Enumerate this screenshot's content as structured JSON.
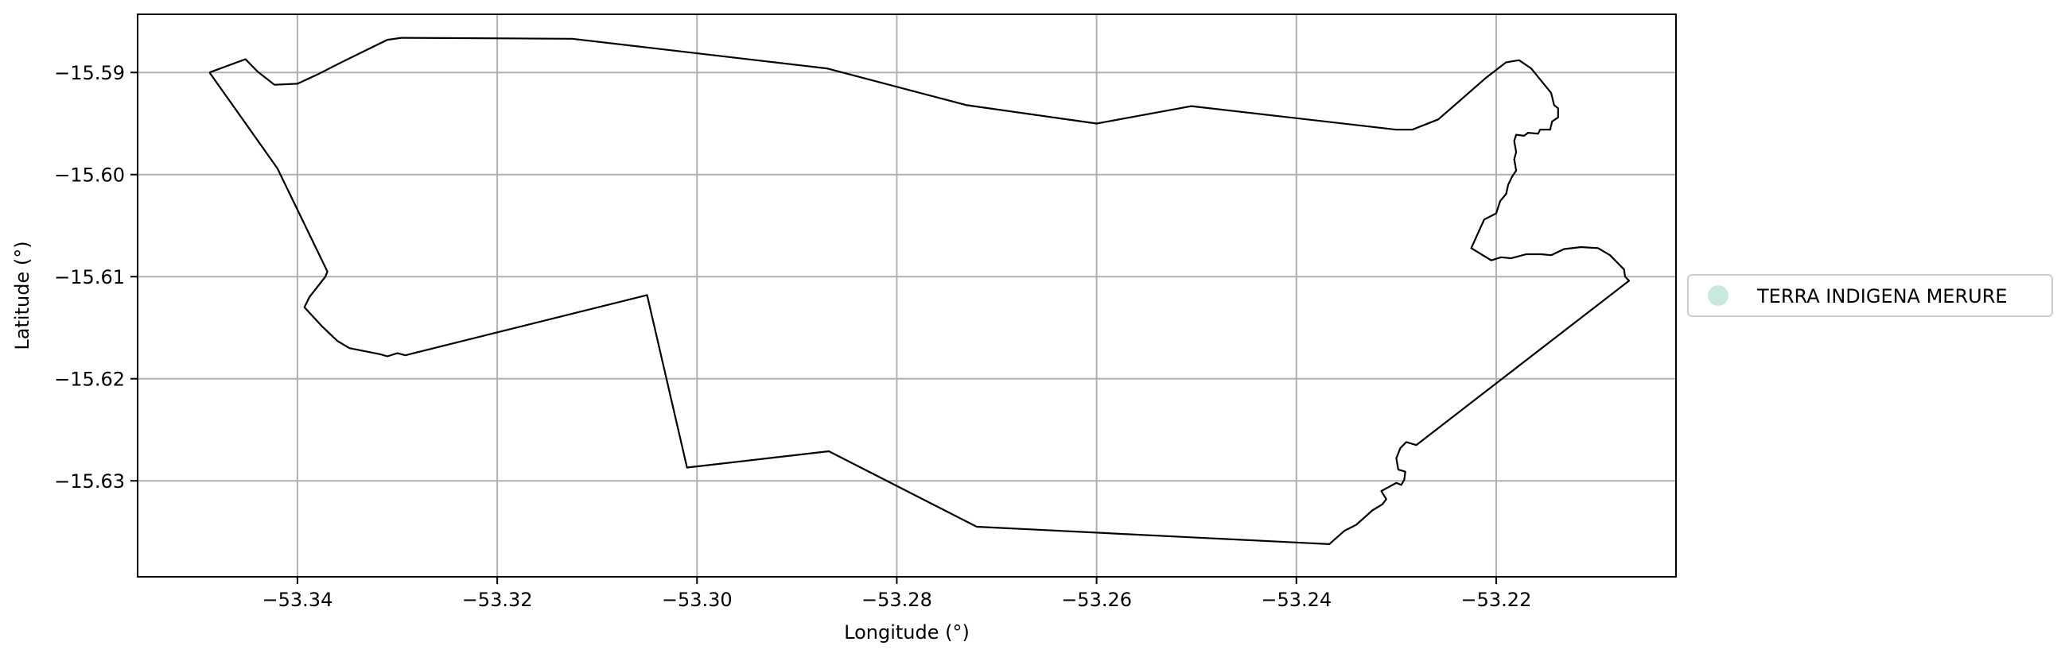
{
  "chart_data": {
    "type": "map",
    "xlabel": "Longitude (°)",
    "ylabel": "Latitude (°)",
    "xlim": [
      -53.356,
      -53.202
    ],
    "ylim": [
      -15.6394,
      -15.5843
    ],
    "x_ticks": [
      -53.34,
      -53.32,
      -53.3,
      -53.28,
      -53.26,
      -53.24,
      -53.22
    ],
    "x_tick_labels": [
      "−53.34",
      "−53.32",
      "−53.30",
      "−53.28",
      "−53.26",
      "−53.24",
      "−53.22"
    ],
    "y_ticks": [
      -15.59,
      -15.6,
      -15.61,
      -15.62,
      -15.63
    ],
    "y_tick_labels": [
      "−15.59",
      "−15.60",
      "−15.61",
      "−15.62",
      "−15.63"
    ],
    "grid": true,
    "legend": {
      "placement": "right-outside",
      "entries": [
        {
          "label": "TERRA INDIGENA MERURE",
          "color": "#c8eadd"
        }
      ]
    },
    "colors": {
      "boundary": "#000000",
      "grid": "#b0b0b0",
      "axes": "#000000"
    },
    "boundary": [
      [
        -53.3488,
        -15.59
      ],
      [
        -53.3452,
        -15.5887
      ],
      [
        -53.344,
        -15.5899
      ],
      [
        -53.3423,
        -15.5912
      ],
      [
        -53.34,
        -15.5911
      ],
      [
        -53.338,
        -15.5902
      ],
      [
        -53.3358,
        -15.5891
      ],
      [
        -53.3331,
        -15.5878
      ],
      [
        -53.331,
        -15.5868
      ],
      [
        -53.3296,
        -15.5866
      ],
      [
        -53.3125,
        -15.5867
      ],
      [
        -53.287,
        -15.5896
      ],
      [
        -53.273,
        -15.5932
      ],
      [
        -53.26,
        -15.595
      ],
      [
        -53.2505,
        -15.5933
      ],
      [
        -53.23,
        -15.5956
      ],
      [
        -53.2284,
        -15.5956
      ],
      [
        -53.2258,
        -15.5946
      ],
      [
        -53.2238,
        -15.5929
      ],
      [
        -53.221,
        -15.5905
      ],
      [
        -53.219,
        -15.589
      ],
      [
        -53.2177,
        -15.5888
      ],
      [
        -53.2165,
        -15.5896
      ],
      [
        -53.2145,
        -15.592
      ],
      [
        -53.2142,
        -15.5932
      ],
      [
        -53.2138,
        -15.5935
      ],
      [
        -53.2138,
        -15.5944
      ],
      [
        -53.2144,
        -15.5948
      ],
      [
        -53.2146,
        -15.5956
      ],
      [
        -53.2156,
        -15.5956
      ],
      [
        -53.2158,
        -15.596
      ],
      [
        -53.2168,
        -15.5959
      ],
      [
        -53.2172,
        -15.5962
      ],
      [
        -53.218,
        -15.5961
      ],
      [
        -53.2182,
        -15.5967
      ],
      [
        -53.218,
        -15.5978
      ],
      [
        -53.2182,
        -15.5985
      ],
      [
        -53.218,
        -15.5996
      ],
      [
        -53.2184,
        -15.6002
      ],
      [
        -53.2188,
        -15.601
      ],
      [
        -53.219,
        -15.6019
      ],
      [
        -53.2196,
        -15.6026
      ],
      [
        -53.22,
        -15.6038
      ],
      [
        -53.2212,
        -15.6044
      ],
      [
        -53.2225,
        -15.6072
      ],
      [
        -53.2205,
        -15.6084
      ],
      [
        -53.2195,
        -15.6081
      ],
      [
        -53.2185,
        -15.6082
      ],
      [
        -53.217,
        -15.6078
      ],
      [
        -53.2155,
        -15.6078
      ],
      [
        -53.2145,
        -15.6079
      ],
      [
        -53.2132,
        -15.6073
      ],
      [
        -53.2115,
        -15.6071
      ],
      [
        -53.2098,
        -15.6072
      ],
      [
        -53.2086,
        -15.6079
      ],
      [
        -53.2072,
        -15.6093
      ],
      [
        -53.2071,
        -15.61
      ],
      [
        -53.2067,
        -15.6104
      ],
      [
        -53.228,
        -15.6265
      ],
      [
        -53.229,
        -15.6262
      ],
      [
        -53.2296,
        -15.6268
      ],
      [
        -53.23,
        -15.6278
      ],
      [
        -53.2298,
        -15.6289
      ],
      [
        -53.2291,
        -15.6291
      ],
      [
        -53.2292,
        -15.6299
      ],
      [
        -53.2295,
        -15.6304
      ],
      [
        -53.23,
        -15.6302
      ],
      [
        -53.2315,
        -15.631
      ],
      [
        -53.231,
        -15.6318
      ],
      [
        -53.2314,
        -15.6323
      ],
      [
        -53.2324,
        -15.6329
      ],
      [
        -53.234,
        -15.6343
      ],
      [
        -53.2352,
        -15.6349
      ],
      [
        -53.2367,
        -15.6362
      ],
      [
        -53.272,
        -15.6345
      ],
      [
        -53.2868,
        -15.6271
      ],
      [
        -53.301,
        -15.6287
      ],
      [
        -53.305,
        -15.6118
      ],
      [
        -53.3292,
        -15.6177
      ],
      [
        -53.33,
        -15.6175
      ],
      [
        -53.331,
        -15.6178
      ],
      [
        -53.3317,
        -15.6176
      ],
      [
        -53.3348,
        -15.617
      ],
      [
        -53.336,
        -15.6163
      ],
      [
        -53.3375,
        -15.6149
      ],
      [
        -53.3393,
        -15.613
      ],
      [
        -53.3388,
        -15.612
      ],
      [
        -53.3372,
        -15.61
      ],
      [
        -53.337,
        -15.6095
      ],
      [
        -53.342,
        -15.5994
      ],
      [
        -53.3488,
        -15.59
      ]
    ]
  }
}
